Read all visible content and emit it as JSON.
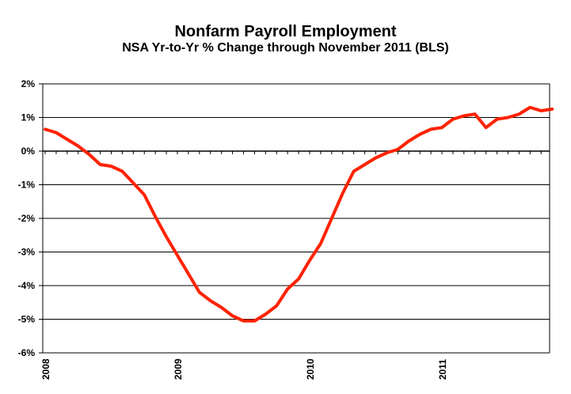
{
  "chart_data": {
    "type": "line",
    "title": "Nonfarm Payroll Employment",
    "subtitle": "NSA Yr-to-Yr % Change through November 2011 (BLS)",
    "xlabel": "",
    "ylabel": "",
    "ylim": [
      -6,
      2
    ],
    "y_ticks": [
      2,
      1,
      0,
      -1,
      -2,
      -3,
      -4,
      -5,
      -6
    ],
    "y_tick_labels": [
      "2%",
      "1%",
      "0%",
      "-1%",
      "-2%",
      "-3%",
      "-4%",
      "-5%",
      "-6%"
    ],
    "x_tick_labels": [
      "2008",
      "2009",
      "2010",
      "2011"
    ],
    "grid": true,
    "legend": "none",
    "line_color": "#ff2200",
    "x": [
      "2008-01",
      "2008-02",
      "2008-03",
      "2008-04",
      "2008-05",
      "2008-06",
      "2008-07",
      "2008-08",
      "2008-09",
      "2008-10",
      "2008-11",
      "2008-12",
      "2009-01",
      "2009-02",
      "2009-03",
      "2009-04",
      "2009-05",
      "2009-06",
      "2009-07",
      "2009-08",
      "2009-09",
      "2009-10",
      "2009-11",
      "2009-12",
      "2010-01",
      "2010-02",
      "2010-03",
      "2010-04",
      "2010-05",
      "2010-06",
      "2010-07",
      "2010-08",
      "2010-09",
      "2010-10",
      "2010-11",
      "2010-12",
      "2011-01",
      "2011-02",
      "2011-03",
      "2011-04",
      "2011-05",
      "2011-06",
      "2011-07",
      "2011-08",
      "2011-09",
      "2011-10",
      "2011-11"
    ],
    "series": [
      {
        "values": [
          0.65,
          0.55,
          0.35,
          0.15,
          -0.1,
          -0.4,
          -0.45,
          -0.6,
          -0.95,
          -1.3,
          -1.95,
          -2.55,
          -3.1,
          -3.65,
          -4.2,
          -4.45,
          -4.65,
          -4.9,
          -5.05,
          -5.05,
          -4.85,
          -4.6,
          -4.1,
          -3.8,
          -3.25,
          -2.75,
          -2.0,
          -1.25,
          -0.6,
          -0.4,
          -0.2,
          -0.05,
          0.05,
          0.3,
          0.5,
          0.65,
          0.7,
          0.95,
          1.05,
          1.1,
          0.7,
          0.95,
          1.0,
          1.1,
          1.3,
          1.2,
          1.25
        ]
      }
    ]
  }
}
